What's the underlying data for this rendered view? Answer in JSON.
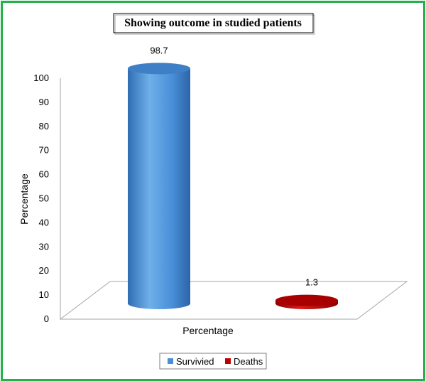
{
  "chart_data": {
    "type": "bar",
    "title": "Showing outcome in studied patients",
    "categories": [
      "Percentage"
    ],
    "series": [
      {
        "name": "Survivied",
        "values": [
          98.7
        ],
        "color": "#4a90d9"
      },
      {
        "name": "Deaths",
        "values": [
          1.3
        ],
        "color": "#c00000"
      }
    ],
    "xlabel": "Percentage",
    "ylabel": "Percentage",
    "ylim": [
      0,
      100
    ],
    "yticks": [
      "0",
      "10",
      "20",
      "30",
      "40",
      "50",
      "60",
      "70",
      "80",
      "90",
      "100"
    ],
    "data_labels": [
      "98.7",
      "1.3"
    ],
    "legend_position": "bottom",
    "style": "3d-cylinder",
    "frame_color": "#22b14c"
  }
}
